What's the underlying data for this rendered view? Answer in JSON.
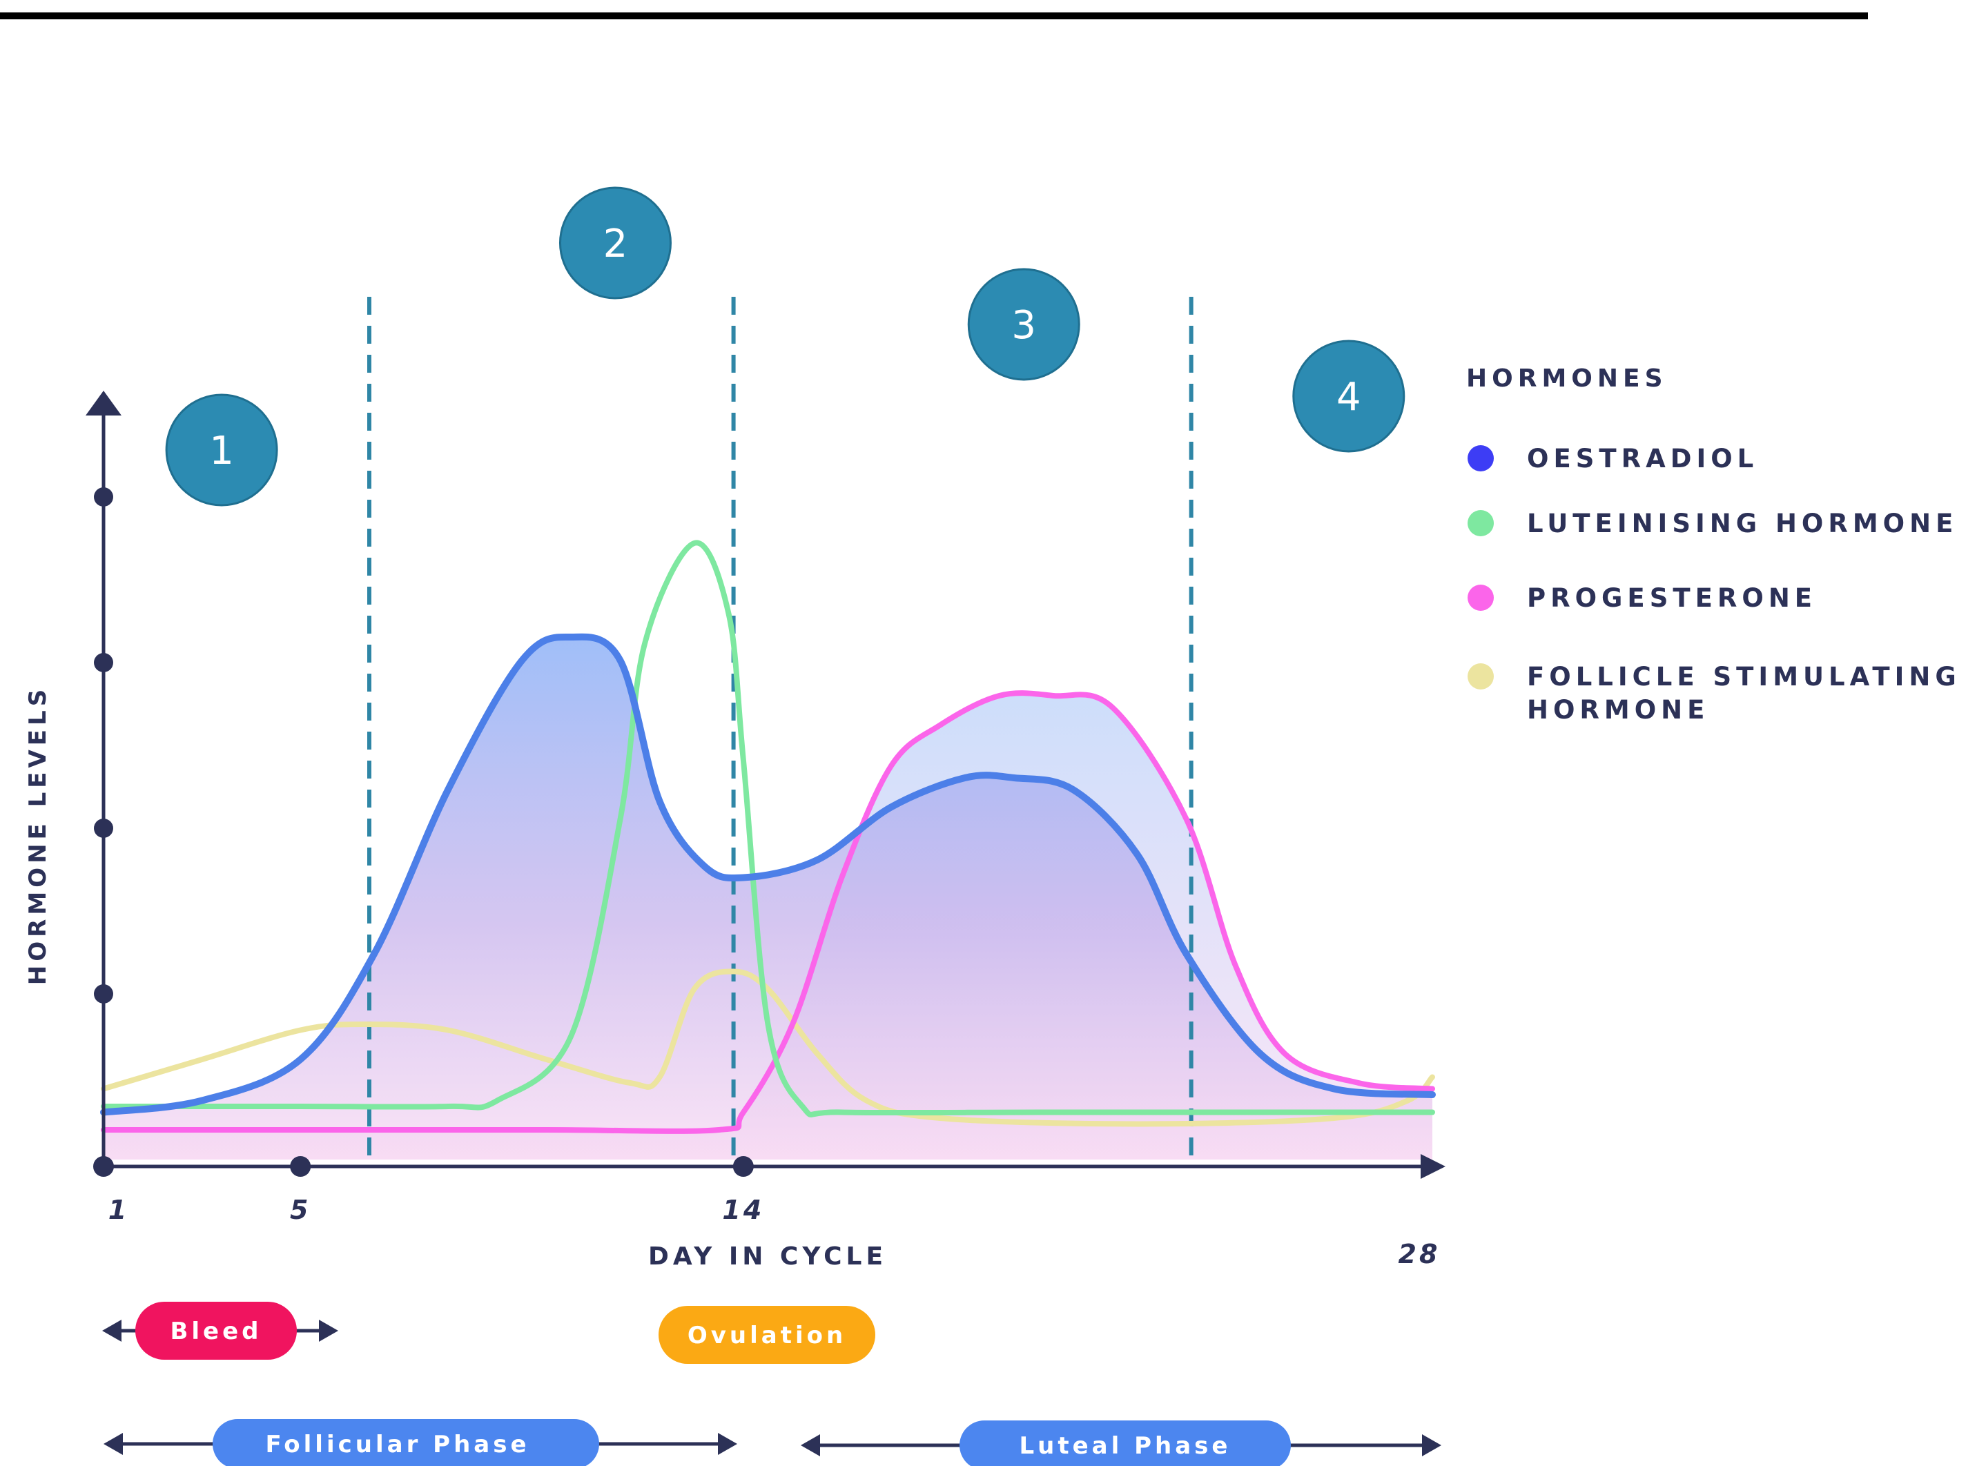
{
  "chart_data": {
    "type": "line",
    "xlabel": "DAY IN CYCLE",
    "ylabel": "HORMONE LEVELS",
    "xlim": [
      1,
      28
    ],
    "x_ticks": [
      {
        "label": "1",
        "value": 1
      },
      {
        "label": "5",
        "value": 5
      },
      {
        "label": "14",
        "value": 14
      },
      {
        "label": "28",
        "value": 28
      }
    ],
    "phase_markers": [
      6.4,
      13.8,
      23.1
    ],
    "region_badges": [
      {
        "label": "1",
        "center_day": 3.4
      },
      {
        "label": "2",
        "center_day": 11.4
      },
      {
        "label": "3",
        "center_day": 19.7
      },
      {
        "label": "4",
        "center_day": 26.3
      }
    ],
    "legend": {
      "title": "HORMONES",
      "placement": "right",
      "entries": [
        {
          "label": "OESTRADIOL",
          "color": "#3d3df5"
        },
        {
          "label": "LUTEINISING HORMONE",
          "color": "#7ee8a0"
        },
        {
          "label": "PROGESTERONE",
          "color": "#fb65ea"
        },
        {
          "label": "FOLLICLE STIMULATING HORMONE",
          "label_lines": [
            "FOLLICLE STIMULATING",
            "HORMONE"
          ],
          "color": "#ece49f"
        }
      ]
    },
    "series": [
      {
        "name": "OESTRADIOL",
        "color": "#4c7fe8",
        "x": [
          1,
          3,
          5,
          6.5,
          8,
          9.5,
          10.5,
          11.5,
          12.3,
          13.2,
          14,
          15.5,
          17,
          18.5,
          19.5,
          20.7,
          22,
          23,
          24.5,
          26,
          28
        ],
        "y": [
          5,
          7,
          14,
          32,
          60,
          82,
          86,
          82,
          58,
          47,
          45,
          48,
          57,
          62,
          62,
          60,
          49,
          32,
          15,
          9,
          8
        ]
      },
      {
        "name": "LUTEINISING HORMONE",
        "color": "#7ee8a0",
        "x": [
          1,
          5,
          8,
          9,
          10.5,
          11.5,
          12,
          13,
          13.7,
          14,
          14.5,
          15.2,
          16,
          20,
          24,
          28
        ],
        "y": [
          6,
          6,
          6,
          7,
          18,
          55,
          85,
          102,
          90,
          65,
          20,
          6,
          5,
          5,
          5,
          5
        ]
      },
      {
        "name": "PROGESTERONE",
        "color": "#fb65ea",
        "x": [
          1,
          5,
          10,
          13.5,
          14,
          15,
          16,
          17,
          18,
          19.2,
          20.3,
          21.5,
          23,
          24,
          25,
          26.5,
          28
        ],
        "y": [
          2,
          2,
          2,
          2,
          5,
          20,
          45,
          64,
          71,
          76,
          76,
          74,
          55,
          30,
          15,
          10,
          9
        ]
      },
      {
        "name": "FOLLICLE STIMULATING HORMONE",
        "color": "#ece49f",
        "x": [
          1,
          3,
          5,
          6.3,
          8,
          10,
          11.7,
          12.3,
          13,
          13.8,
          14.5,
          15.5,
          16.5,
          18,
          22,
          26,
          27.5,
          28
        ],
        "y": [
          9,
          14,
          19,
          20,
          19,
          14,
          10,
          11,
          26,
          29,
          26,
          15,
          7,
          4,
          3,
          4,
          7,
          11
        ]
      }
    ]
  },
  "bottom_labels": {
    "bleed": "Bleed",
    "ovulation": "Ovulation",
    "follicular": "Follicular Phase",
    "luteal": "Luteal Phase"
  }
}
